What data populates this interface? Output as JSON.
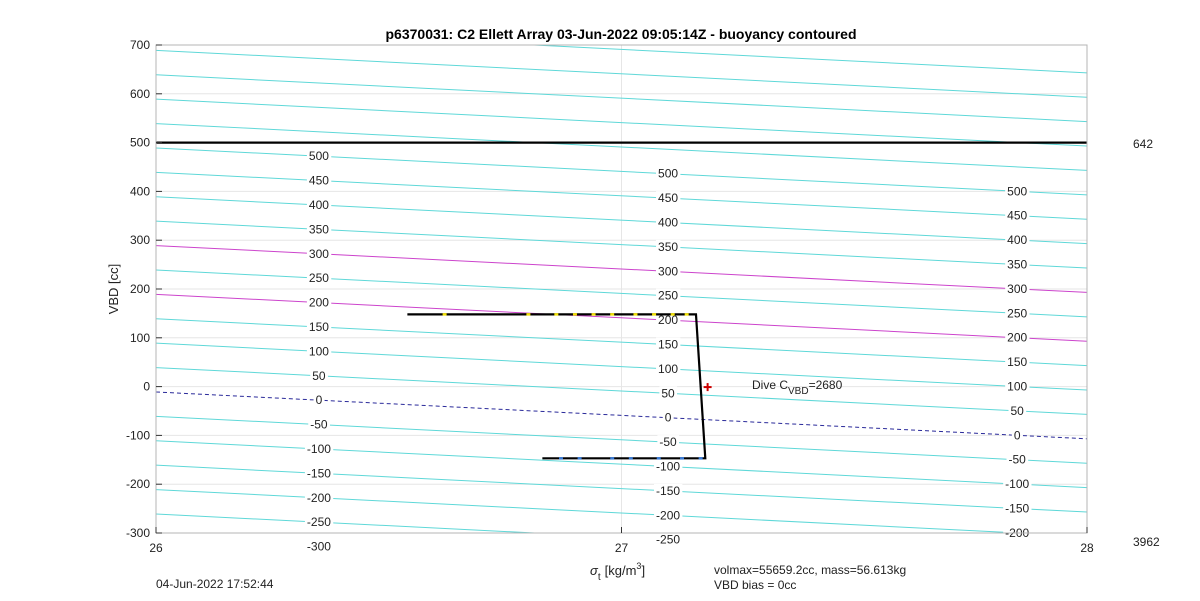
{
  "chart_data": {
    "type": "line",
    "title": "p6370031: C2 Ellett Array 03-Jun-2022 09:05:14Z - buoyancy contoured",
    "xlabel_symbol": "σ",
    "xlabel_sub": "t",
    "xlabel_unit": "[kg/m",
    "xlabel_sup": "3",
    "xlabel_close": "]",
    "ylabel": "VBD [cc]",
    "xlim": [
      26,
      28
    ],
    "ylim": [
      -300,
      700
    ],
    "x_ticks": [
      "26",
      "27",
      "28"
    ],
    "y_ticks": [
      "700",
      "600",
      "500",
      "400",
      "300",
      "200",
      "100",
      "0",
      "-100",
      "-200",
      "-300"
    ],
    "grid": true,
    "reference_line": {
      "y": 500,
      "color": "#000000"
    },
    "right_labels": {
      "top": "642",
      "bottom": "3962"
    },
    "contours": {
      "color": "#5fd8d8",
      "highlight_color": "#cc44cc",
      "zero_color": "#2a2a9a",
      "levels": [
        -300,
        -250,
        -200,
        -150,
        -100,
        -50,
        0,
        50,
        100,
        150,
        200,
        250,
        300,
        350,
        400,
        450,
        500,
        550,
        600,
        650,
        700,
        750
      ],
      "highlight_levels": [
        200,
        300
      ],
      "slope_vbd_per_sigma": -48,
      "label_columns": [
        {
          "x": 26.35,
          "labels": [
            "500",
            "450",
            "400",
            "350",
            "300",
            "250",
            "200",
            "150",
            "100",
            "50",
            "0",
            "-50",
            "-100",
            "-150",
            "-200",
            "-250",
            "-300"
          ]
        },
        {
          "x": 27.1,
          "labels": [
            "500",
            "450",
            "400",
            "350",
            "300",
            "250",
            "200",
            "150",
            "100",
            "50",
            "0",
            "-50",
            "-100",
            "-150",
            "-200",
            "-250"
          ]
        },
        {
          "x": 27.85,
          "labels": [
            "500",
            "450",
            "400",
            "350",
            "300",
            "250",
            "200",
            "150",
            "100",
            "50",
            "0",
            "-50",
            "-100",
            "-150",
            "-200"
          ]
        }
      ]
    },
    "series": [
      {
        "color": "#000000",
        "points": [
          [
            26.54,
            148
          ],
          [
            27.16,
            148
          ],
          [
            27.18,
            -147
          ],
          [
            26.83,
            -147
          ]
        ]
      }
    ],
    "dive_markers": [
      {
        "x": 26.62,
        "y": 148,
        "color": "#f2e20a"
      },
      {
        "x": 26.8,
        "y": 148,
        "color": "#f2e20a"
      },
      {
        "x": 26.86,
        "y": 148,
        "color": "#f2e20a"
      },
      {
        "x": 26.9,
        "y": 148,
        "color": "#f2e20a"
      },
      {
        "x": 26.94,
        "y": 148,
        "color": "#f2e20a"
      },
      {
        "x": 26.98,
        "y": 148,
        "color": "#f2e20a"
      },
      {
        "x": 27.03,
        "y": 148,
        "color": "#f2e20a"
      },
      {
        "x": 27.07,
        "y": 148,
        "color": "#f2e20a"
      },
      {
        "x": 27.11,
        "y": 148,
        "color": "#f2e20a"
      },
      {
        "x": 27.14,
        "y": 148,
        "color": "#f2e20a"
      }
    ],
    "climb_markers": [
      {
        "x": 26.87,
        "y": -147,
        "color": "#3a7bd5"
      },
      {
        "x": 26.91,
        "y": -147,
        "color": "#3a7bd5"
      },
      {
        "x": 26.98,
        "y": -147,
        "color": "#3a7bd5"
      },
      {
        "x": 27.02,
        "y": -147,
        "color": "#3a7bd5"
      },
      {
        "x": 27.08,
        "y": -147,
        "color": "#3a7bd5"
      },
      {
        "x": 27.13,
        "y": -147,
        "color": "#3a7bd5"
      },
      {
        "x": 27.17,
        "y": -147,
        "color": "#3a7bd5"
      }
    ],
    "cvbd_marker": {
      "x": 27.185,
      "y": -1,
      "color": "#cc0000"
    },
    "annotations": {
      "dive_label": "Dive C",
      "dive_sub": "VBD",
      "dive_value": "=2680",
      "footer_date": "04-Jun-2022 17:52:44",
      "volmax": "volmax=55659.2cc, mass=56.613kg",
      "bias": "VBD bias = 0cc"
    }
  }
}
